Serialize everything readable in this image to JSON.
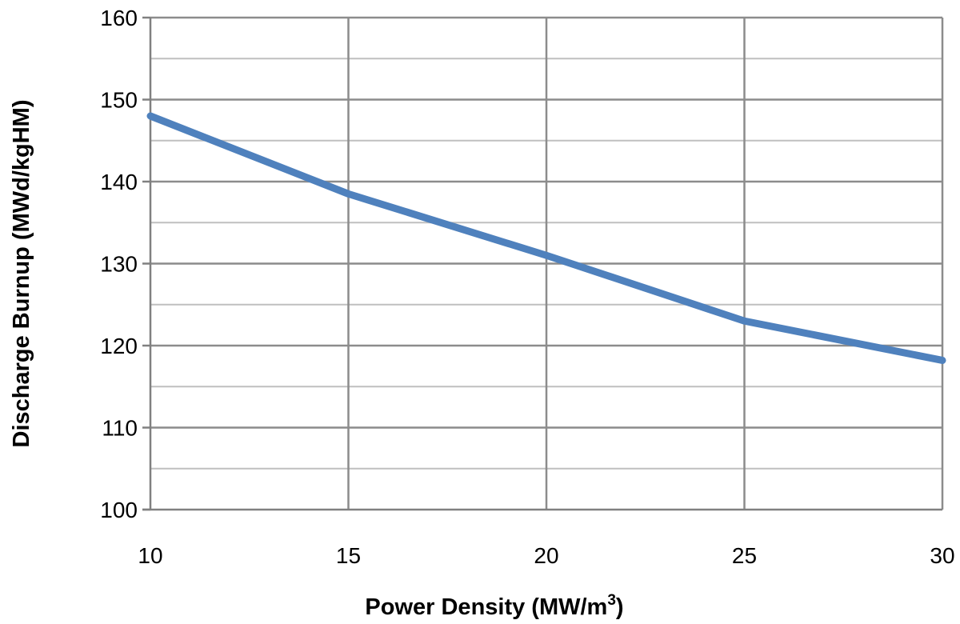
{
  "chart_data": {
    "type": "line",
    "title": "",
    "xlabel": "Power Density (MW/m",
    "xlabel_sup": "3",
    "xlabel_suffix": ")",
    "ylabel": "Discharge Burnup  (MWd/kgHM)",
    "xlim": [
      10,
      30
    ],
    "ylim": [
      100,
      160
    ],
    "x_ticks": [
      10,
      15,
      20,
      25,
      30
    ],
    "y_ticks": [
      100,
      110,
      120,
      130,
      140,
      150,
      160
    ],
    "y_minor_step": 5,
    "grid": true,
    "legend": "none",
    "series": [
      {
        "name": "Discharge Burnup",
        "color": "#4f81bd",
        "x": [
          10,
          15,
          20,
          25,
          30
        ],
        "values": [
          148,
          138.5,
          131,
          123,
          118.2
        ]
      }
    ]
  }
}
